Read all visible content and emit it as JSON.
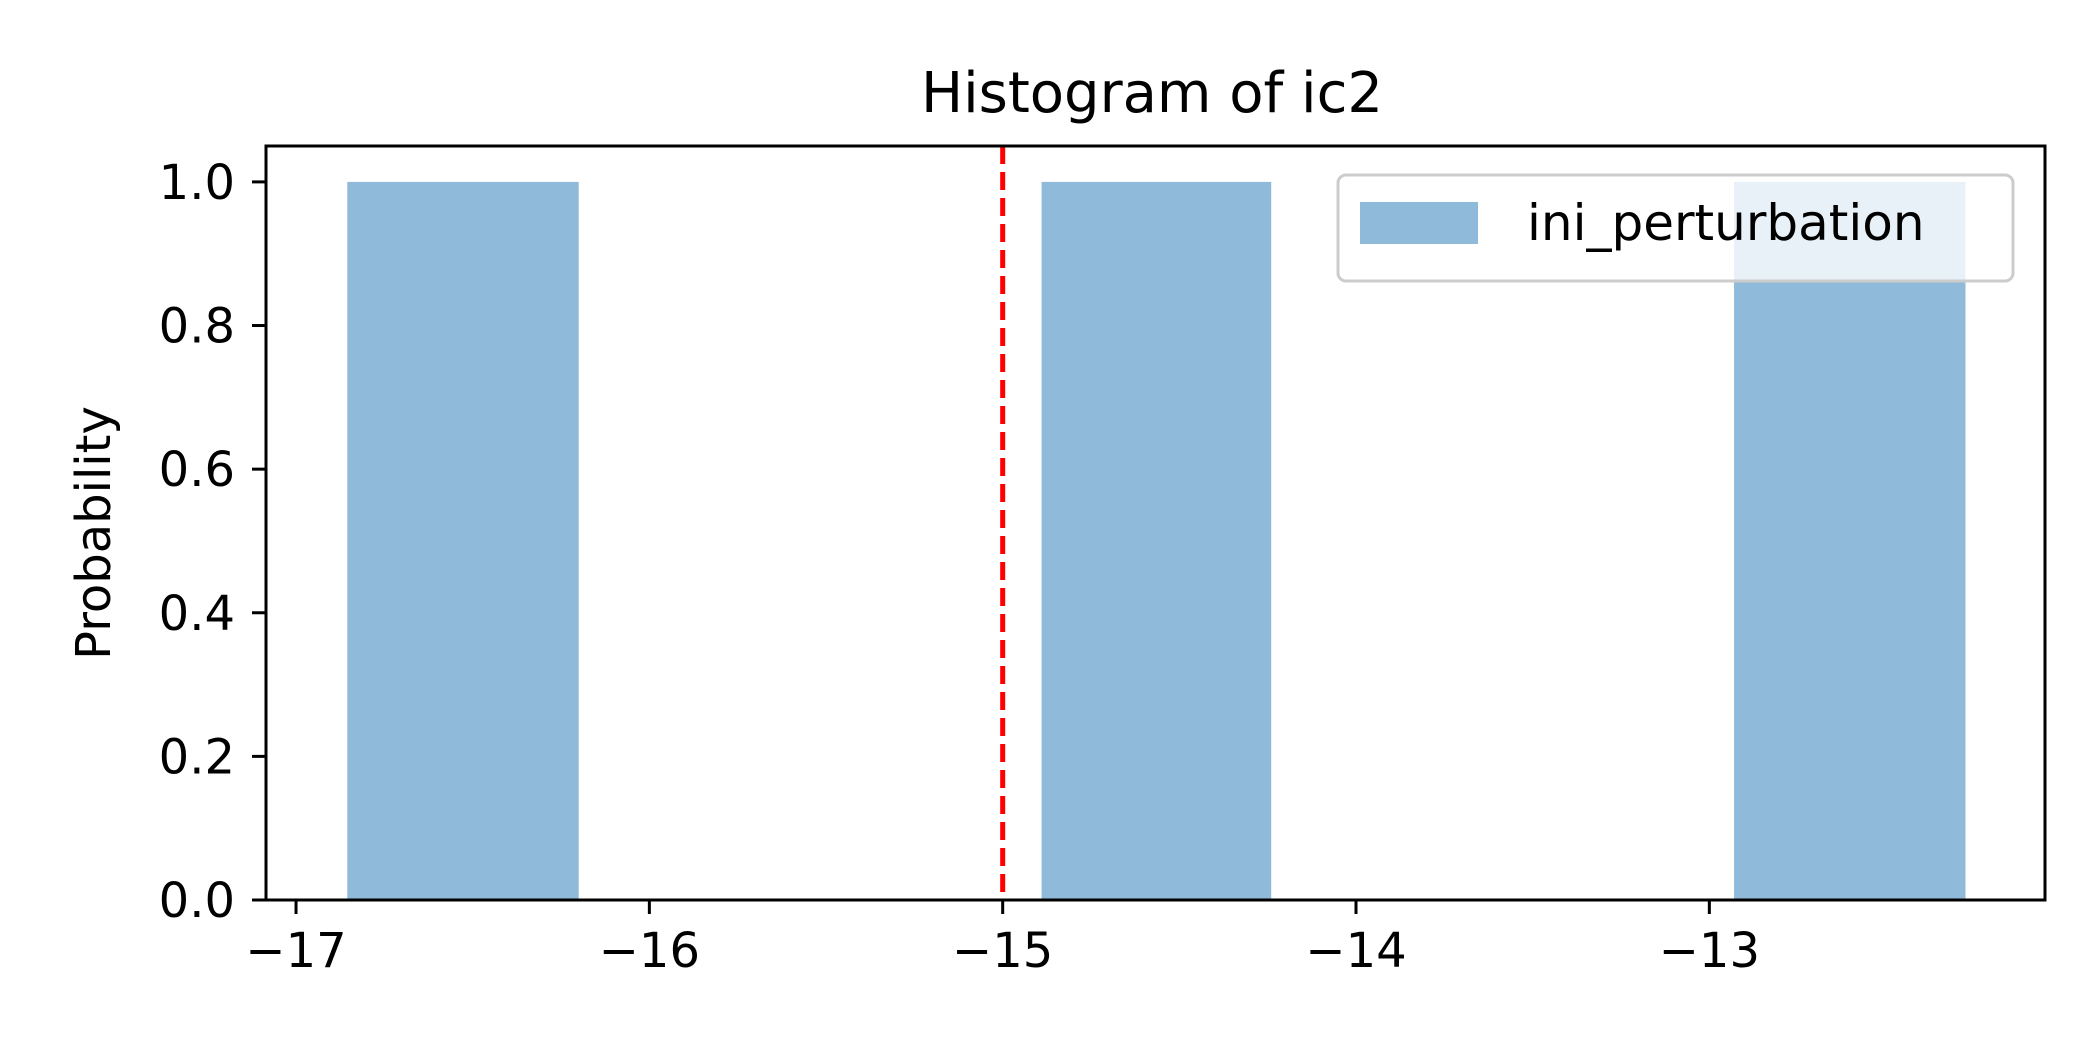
{
  "chart_data": {
    "type": "bar",
    "title": "Histogram of ic2",
    "xlabel": "",
    "ylabel": "Probability",
    "xlim": [
      -17.085,
      -12.05
    ],
    "ylim": [
      0,
      1.05
    ],
    "xticks": [
      -17,
      -16,
      -15,
      -14,
      -13
    ],
    "xtick_labels": [
      "−17",
      "−16",
      "−15",
      "−14",
      "−13"
    ],
    "yticks": [
      0,
      0.2,
      0.4,
      0.6,
      0.8,
      1.0
    ],
    "ytick_labels": [
      "0.0",
      "0.2",
      "0.4",
      "0.6",
      "0.8",
      "1.0"
    ],
    "grid": false,
    "series": [
      {
        "name": "ini_perturbation",
        "color": "#8fbad9",
        "bins": [
          {
            "x0": -16.855,
            "x1": -16.2,
            "value": 1.0
          },
          {
            "x0": -14.89,
            "x1": -14.24,
            "value": 1.0
          },
          {
            "x0": -12.93,
            "x1": -12.275,
            "value": 1.0
          }
        ]
      }
    ],
    "reference_line": {
      "x": -15.0,
      "color": "#ff0000",
      "style": "dashed"
    },
    "legend": {
      "position": "top-right",
      "entries": [
        "ini_perturbation"
      ]
    }
  }
}
